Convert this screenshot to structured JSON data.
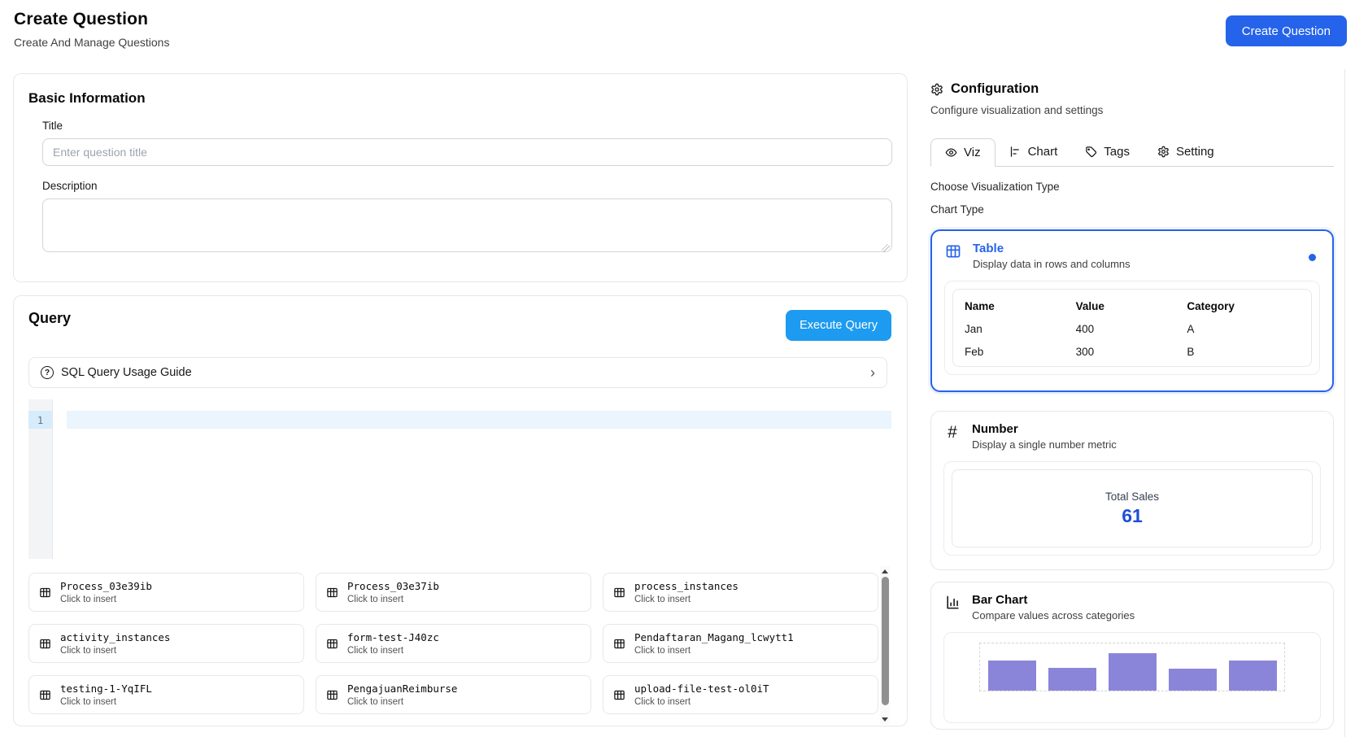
{
  "header": {
    "title": "Create Question",
    "subtitle": "Create And Manage Questions",
    "create_button": "Create Question"
  },
  "basic_info": {
    "section_title": "Basic Information",
    "title_label": "Title",
    "title_placeholder": "Enter question title",
    "description_label": "Description"
  },
  "query": {
    "section_title": "Query",
    "execute_button": "Execute Query",
    "guide_label": "SQL Query Usage Guide",
    "guide_chevron": "›",
    "editor_line_number": "1",
    "insert_hint": "Click to insert",
    "tables": [
      {
        "name": "Process_03e39ib"
      },
      {
        "name": "Process_03e37ib"
      },
      {
        "name": "process_instances"
      },
      {
        "name": "activity_instances"
      },
      {
        "name": "form-test-J40zc"
      },
      {
        "name": "Pendaftaran_Magang_lcwytt1"
      },
      {
        "name": "testing-1-YqIFL"
      },
      {
        "name": "PengajuanReimburse"
      },
      {
        "name": "upload-file-test-ol0iT"
      }
    ]
  },
  "config": {
    "title": "Configuration",
    "subtitle": "Configure visualization and settings",
    "tabs": [
      {
        "label": "Viz",
        "icon": "eye-icon",
        "active": true
      },
      {
        "label": "Chart",
        "icon": "bar-chart-horizontal-icon",
        "active": false
      },
      {
        "label": "Tags",
        "icon": "tag-icon",
        "active": false
      },
      {
        "label": "Setting",
        "icon": "gear-icon",
        "active": false
      }
    ],
    "choose_label": "Choose Visualization Type",
    "chart_type_label": "Chart Type",
    "cards": {
      "table": {
        "title": "Table",
        "description": "Display data in rows and columns",
        "selected": true,
        "preview": {
          "headers": [
            "Name",
            "Value",
            "Category"
          ],
          "rows": [
            [
              "Jan",
              "400",
              "A"
            ],
            [
              "Feb",
              "300",
              "B"
            ]
          ]
        }
      },
      "number": {
        "title": "Number",
        "icon_symbol": "#",
        "description": "Display a single number metric",
        "preview": {
          "label": "Total Sales",
          "value": "61"
        }
      },
      "bar": {
        "title": "Bar Chart",
        "description": "Compare values across categories",
        "preview": {
          "values_percent": [
            64,
            49,
            80,
            46,
            63
          ]
        }
      }
    }
  },
  "colors": {
    "primary_blue": "#2563eb",
    "execute_blue": "#1d9bf0",
    "metric_blue": "#1d4ed8",
    "bar_purple": "#8b85da",
    "selected_border": "#2563eb"
  }
}
